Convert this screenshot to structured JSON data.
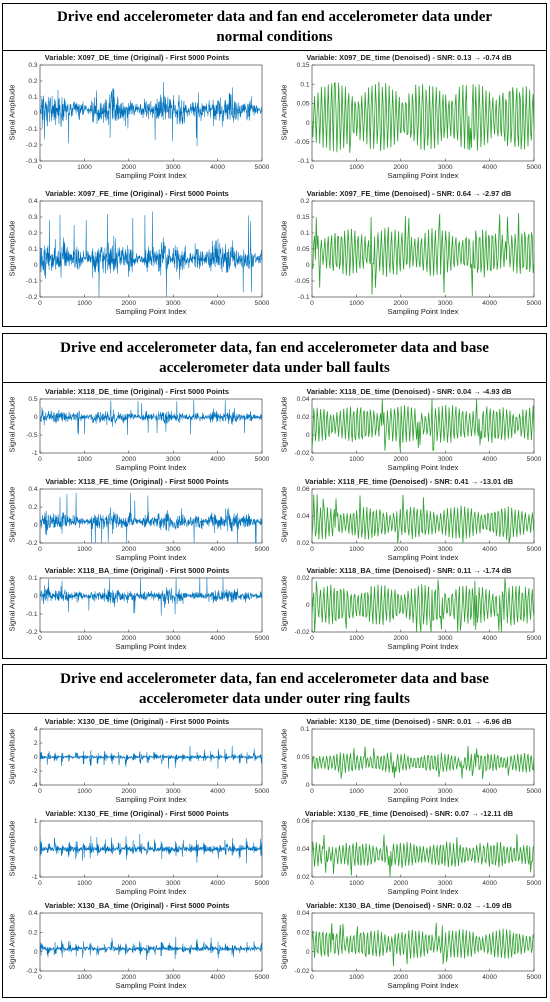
{
  "panels": [
    {
      "title_line1": "Drive end accelerometer data and fan end accelerometer data under",
      "title_line2": "normal conditions"
    },
    {
      "title_line1": "Drive end accelerometer data, fan end accelerometer data and base",
      "title_line2": "accelerometer data under ball faults"
    },
    {
      "title_line1": "Drive end accelerometer data, fan end accelerometer data and base",
      "title_line2": "accelerometer data under outer ring faults"
    }
  ],
  "chart_data": [
    {
      "type": "line",
      "panel": 0,
      "title": "Variable: X097_DE_time (Original) - First 5000 Points",
      "xlabel": "Sampling Point Index",
      "ylabel": "Signal Amplitude",
      "color": "#0072BD",
      "x_range": [
        0,
        5000
      ],
      "x_ticks": [
        "0",
        "1000",
        "2000",
        "3000",
        "4000",
        "5000"
      ],
      "y_range": [
        -0.3,
        0.3
      ],
      "y_ticks": [
        "-0.3",
        "-0.2",
        "-0.1",
        "0",
        "0.1",
        "0.2",
        "0.3"
      ],
      "signal": {
        "kind": "noise",
        "center": 0.02,
        "amplitude": 0.11,
        "spike": 0.24
      }
    },
    {
      "type": "line",
      "panel": 0,
      "title": "Variable: X097_DE_time (Denoised) - SNR: 0.13 → -0.74 dB",
      "xlabel": "Sampling Point Index",
      "ylabel": "Signal Amplitude",
      "color": "#2CA02C",
      "x_range": [
        0,
        5000
      ],
      "x_ticks": [
        "0",
        "1000",
        "2000",
        "3000",
        "4000",
        "5000"
      ],
      "y_range": [
        -0.1,
        0.15
      ],
      "y_ticks": [
        "-0.1",
        "-0.05",
        "0",
        "0.05",
        "0.1",
        "0.15"
      ],
      "signal": {
        "kind": "smooth",
        "center": 0.015,
        "amplitude": 0.06,
        "spike": 0.1
      }
    },
    {
      "type": "line",
      "panel": 0,
      "title": "Variable: X097_FE_time (Original) - First 5000 Points",
      "xlabel": "Sampling Point Index",
      "ylabel": "Signal Amplitude",
      "color": "#0072BD",
      "x_range": [
        0,
        5000
      ],
      "x_ticks": [
        "0",
        "1000",
        "2000",
        "3000",
        "4000",
        "5000"
      ],
      "y_range": [
        -0.2,
        0.4
      ],
      "y_ticks": [
        "-0.2",
        "-0.1",
        "0",
        "0.1",
        "0.2",
        "0.3",
        "0.4"
      ],
      "signal": {
        "kind": "noise",
        "center": 0.04,
        "amplitude": 0.11,
        "spike": 0.3
      }
    },
    {
      "type": "line",
      "panel": 0,
      "title": "Variable: X097_FE_time (Denoised) - SNR: 0.64 → -2.97 dB",
      "xlabel": "Sampling Point Index",
      "ylabel": "Signal Amplitude",
      "color": "#2CA02C",
      "x_range": [
        0,
        5000
      ],
      "x_ticks": [
        "0",
        "1000",
        "2000",
        "3000",
        "4000",
        "5000"
      ],
      "y_range": [
        -0.1,
        0.2
      ],
      "y_ticks": [
        "-0.1",
        "-0.05",
        "0",
        "0.05",
        "0.1",
        "0.15",
        "0.2"
      ],
      "signal": {
        "kind": "smooth",
        "center": 0.04,
        "amplitude": 0.05,
        "spike": 0.14
      }
    },
    {
      "type": "line",
      "panel": 1,
      "title": "Variable: X118_DE_time (Original) - First 5000 Points",
      "xlabel": "Sampling Point Index",
      "ylabel": "Signal Amplitude",
      "color": "#0072BD",
      "x_range": [
        0,
        5000
      ],
      "x_ticks": [
        "0",
        "1000",
        "2000",
        "3000",
        "4000",
        "5000"
      ],
      "y_range": [
        -1,
        0.5
      ],
      "y_ticks": [
        "-1",
        "-0.5",
        "0",
        "0.5"
      ],
      "signal": {
        "kind": "noise",
        "center": 0.0,
        "amplitude": 0.2,
        "spike": 0.5
      }
    },
    {
      "type": "line",
      "panel": 1,
      "title": "Variable: X118_DE_time (Denoised) - SNR: 0.04 → -4.93 dB",
      "xlabel": "Sampling Point Index",
      "ylabel": "Signal Amplitude",
      "color": "#2CA02C",
      "x_range": [
        0,
        5000
      ],
      "x_ticks": [
        "0",
        "1000",
        "2000",
        "3000",
        "4000",
        "5000"
      ],
      "y_range": [
        -0.02,
        0.04
      ],
      "y_ticks": [
        "-0.02",
        "0",
        "0.02",
        "0.04"
      ],
      "signal": {
        "kind": "smooth",
        "center": 0.012,
        "amplitude": 0.014,
        "spike": 0.03
      }
    },
    {
      "type": "line",
      "panel": 1,
      "title": "Variable: X118_FE_time (Original) - First 5000 Points",
      "xlabel": "Sampling Point Index",
      "ylabel": "Signal Amplitude",
      "color": "#0072BD",
      "x_range": [
        0,
        5000
      ],
      "x_ticks": [
        "0",
        "1000",
        "2000",
        "3000",
        "4000",
        "5000"
      ],
      "y_range": [
        -0.2,
        0.4
      ],
      "y_ticks": [
        "-0.2",
        "0",
        "0.2",
        "0.4"
      ],
      "signal": {
        "kind": "noise",
        "center": 0.04,
        "amplitude": 0.12,
        "spike": 0.32
      }
    },
    {
      "type": "line",
      "panel": 1,
      "title": "Variable: X118_FE_time (Denoised) - SNR: 0.41 → -13.01 dB",
      "xlabel": "Sampling Point Index",
      "ylabel": "Signal Amplitude",
      "color": "#2CA02C",
      "x_range": [
        0,
        5000
      ],
      "x_ticks": [
        "0",
        "1000",
        "2000",
        "3000",
        "4000",
        "5000"
      ],
      "y_range": [
        0.02,
        0.06
      ],
      "y_ticks": [
        "0.02",
        "0.04",
        "0.06"
      ],
      "signal": {
        "kind": "smooth",
        "center": 0.035,
        "amplitude": 0.008,
        "spike": 0.022
      }
    },
    {
      "type": "line",
      "panel": 1,
      "title": "Variable: X118_BA_time (Original) - First 5000 Points",
      "xlabel": "Sampling Point Index",
      "ylabel": "Signal Amplitude",
      "color": "#0072BD",
      "x_range": [
        0,
        5000
      ],
      "x_ticks": [
        "0",
        "1000",
        "2000",
        "3000",
        "4000",
        "5000"
      ],
      "y_range": [
        -0.2,
        0.1
      ],
      "y_ticks": [
        "-0.2",
        "-0.1",
        "0",
        "0.1"
      ],
      "signal": {
        "kind": "noise",
        "center": 0.0,
        "amplitude": 0.045,
        "spike": 0.11
      }
    },
    {
      "type": "line",
      "panel": 1,
      "title": "Variable: X118_BA_time (Denoised) - SNR: 0.11 → -1.74 dB",
      "xlabel": "Sampling Point Index",
      "ylabel": "Signal Amplitude",
      "color": "#2CA02C",
      "x_range": [
        0,
        5000
      ],
      "x_ticks": [
        "0",
        "1000",
        "2000",
        "3000",
        "4000",
        "5000"
      ],
      "y_range": [
        -0.02,
        0.02
      ],
      "y_ticks": [
        "-0.02",
        "0",
        "0.02"
      ],
      "signal": {
        "kind": "smooth",
        "center": 0.0,
        "amplitude": 0.01,
        "spike": 0.022
      }
    },
    {
      "type": "line",
      "panel": 2,
      "title": "Variable: X130_DE_time (Original) - First 5000 Points",
      "xlabel": "Sampling Point Index",
      "ylabel": "Signal Amplitude",
      "color": "#0072BD",
      "x_range": [
        0,
        5000
      ],
      "x_ticks": [
        "0",
        "1000",
        "2000",
        "3000",
        "4000",
        "5000"
      ],
      "y_range": [
        -4,
        4
      ],
      "y_ticks": [
        "-4",
        "-2",
        "0",
        "2",
        "4"
      ],
      "signal": {
        "kind": "burst",
        "center": 0.0,
        "amplitude": 0.5,
        "spike": 2.6,
        "period": 160
      }
    },
    {
      "type": "line",
      "panel": 2,
      "title": "Variable: X130_DE_time (Denoised) - SNR: 0.01 → -6.96 dB",
      "xlabel": "Sampling Point Index",
      "ylabel": "Signal Amplitude",
      "color": "#2CA02C",
      "x_range": [
        0,
        5000
      ],
      "x_ticks": [
        "0",
        "1000",
        "2000",
        "3000",
        "4000",
        "5000"
      ],
      "y_range": [
        0,
        0.1
      ],
      "y_ticks": [
        "0",
        "0.05",
        "0.1"
      ],
      "signal": {
        "kind": "smooth",
        "center": 0.04,
        "amplitude": 0.012,
        "spike": 0.03
      }
    },
    {
      "type": "line",
      "panel": 2,
      "title": "Variable: X130_FE_time (Original) - First 5000 Points",
      "xlabel": "Sampling Point Index",
      "ylabel": "Signal Amplitude",
      "color": "#0072BD",
      "x_range": [
        0,
        5000
      ],
      "x_ticks": [
        "0",
        "1000",
        "2000",
        "3000",
        "4000",
        "5000"
      ],
      "y_range": [
        -1,
        1
      ],
      "y_ticks": [
        "-1",
        "0",
        "1"
      ],
      "signal": {
        "kind": "burst",
        "center": 0.0,
        "amplitude": 0.28,
        "spike": 0.75,
        "period": 160
      }
    },
    {
      "type": "line",
      "panel": 2,
      "title": "Variable: X130_FE_time (Denoised) - SNR: 0.07 → -12.11 dB",
      "xlabel": "Sampling Point Index",
      "ylabel": "Signal Amplitude",
      "color": "#2CA02C",
      "x_range": [
        0,
        5000
      ],
      "x_ticks": [
        "0",
        "1000",
        "2000",
        "3000",
        "4000",
        "5000"
      ],
      "y_range": [
        0.02,
        0.06
      ],
      "y_ticks": [
        "0.02",
        "0.04",
        "0.06"
      ],
      "signal": {
        "kind": "smooth",
        "center": 0.036,
        "amplitude": 0.006,
        "spike": 0.016
      }
    },
    {
      "type": "line",
      "panel": 2,
      "title": "Variable: X130_BA_time (Original) - First 5000 Points",
      "xlabel": "Sampling Point Index",
      "ylabel": "Signal Amplitude",
      "color": "#0072BD",
      "x_range": [
        0,
        5000
      ],
      "x_ticks": [
        "0",
        "1000",
        "2000",
        "3000",
        "4000",
        "5000"
      ],
      "y_range": [
        -0.2,
        0.4
      ],
      "y_ticks": [
        "-0.2",
        "0",
        "0.2",
        "0.4"
      ],
      "signal": {
        "kind": "burst",
        "center": 0.03,
        "amplitude": 0.06,
        "spike": 0.17,
        "period": 160
      }
    },
    {
      "type": "line",
      "panel": 2,
      "title": "Variable: X130_BA_time (Denoised) - SNR: 0.02 → -1.09 dB",
      "xlabel": "Sampling Point Index",
      "ylabel": "Signal Amplitude",
      "color": "#2CA02C",
      "x_range": [
        0,
        5000
      ],
      "x_ticks": [
        "0",
        "1000",
        "2000",
        "3000",
        "4000",
        "5000"
      ],
      "y_range": [
        -0.02,
        0.04
      ],
      "y_ticks": [
        "-0.02",
        "0",
        "0.02",
        "0.04"
      ],
      "signal": {
        "kind": "smooth",
        "center": 0.008,
        "amplitude": 0.01,
        "spike": 0.024
      }
    }
  ]
}
